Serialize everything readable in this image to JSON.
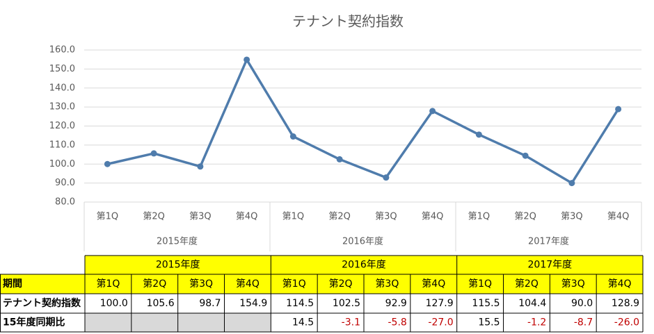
{
  "chart_data": {
    "type": "line",
    "title": "テナント契約指数",
    "categories": [
      "第1Q",
      "第2Q",
      "第3Q",
      "第4Q",
      "第1Q",
      "第2Q",
      "第3Q",
      "第4Q",
      "第1Q",
      "第2Q",
      "第3Q",
      "第4Q"
    ],
    "groups": [
      "2015年度",
      "2016年度",
      "2017年度"
    ],
    "series": [
      {
        "name": "テナント契約指数",
        "color": "#4f7cac",
        "values": [
          100.0,
          105.6,
          98.7,
          154.9,
          114.5,
          102.5,
          92.9,
          127.9,
          115.5,
          104.4,
          90.0,
          128.9
        ],
        "value_labels": [
          "100.0",
          "105.6",
          "98.7",
          "154.9",
          "114.5",
          "102.5",
          "92.9",
          "127.9",
          "115.5",
          "104.4",
          "90.0",
          "128.9"
        ]
      }
    ],
    "ylim": [
      80,
      160
    ],
    "yticks": [
      {
        "value": 80,
        "label": "80.0"
      },
      {
        "value": 90,
        "label": "90.0"
      },
      {
        "value": 100,
        "label": "100.0"
      },
      {
        "value": 110,
        "label": "110.0"
      },
      {
        "value": 120,
        "label": "120.0"
      },
      {
        "value": 130,
        "label": "130.0"
      },
      {
        "value": 140,
        "label": "140.0"
      },
      {
        "value": 150,
        "label": "150.0"
      },
      {
        "value": 160,
        "label": "160.0"
      }
    ],
    "grid": true
  },
  "table": {
    "header": "期間",
    "row_labels": [
      "テナント契約指数",
      "15年度同期比"
    ],
    "yoy": {
      "values": [
        null,
        null,
        null,
        null,
        14.5,
        -3.1,
        -5.8,
        -27.0,
        15.5,
        -1.2,
        -8.7,
        -26.0
      ],
      "value_labels": [
        null,
        null,
        null,
        null,
        "14.5",
        "-3.1",
        "-5.8",
        "-27.0",
        "15.5",
        "-1.2",
        "-8.7",
        "-26.0"
      ],
      "negative_color": "#c00000"
    }
  }
}
